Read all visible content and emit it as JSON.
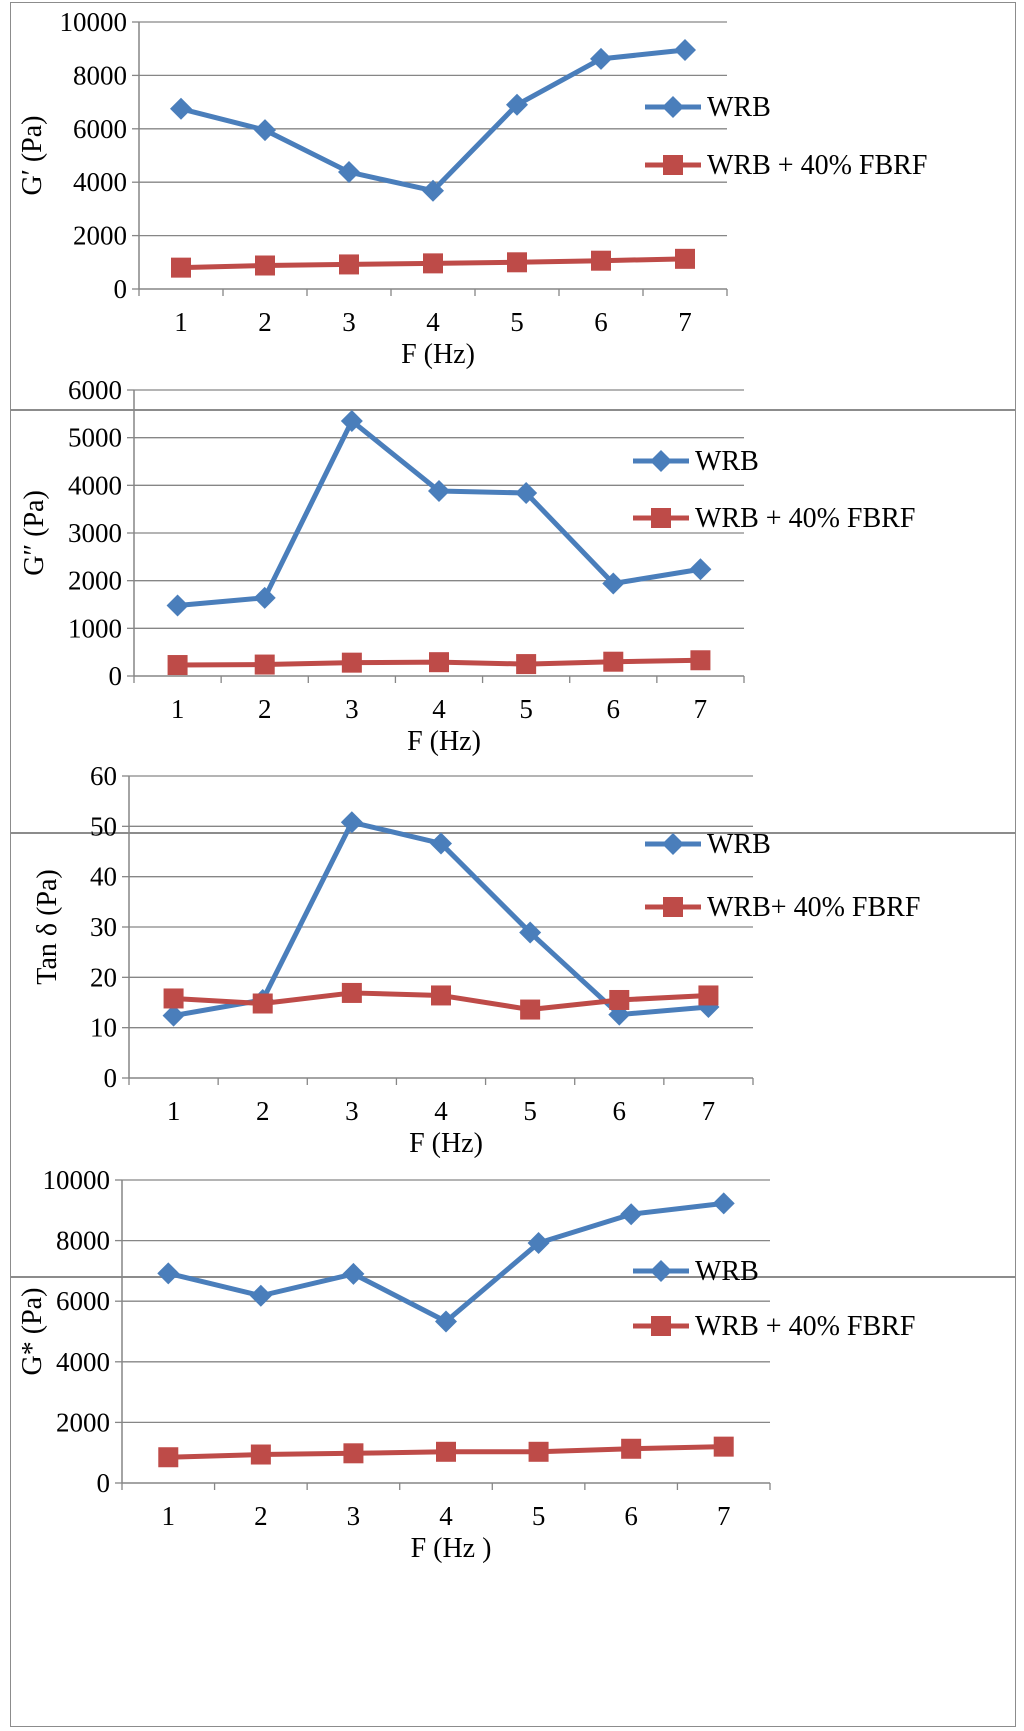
{
  "colors": {
    "series_a": "#4a7ebb",
    "series_b": "#be4b48",
    "grid": "#868686"
  },
  "chart_data": [
    {
      "type": "line",
      "title": "",
      "xlabel": "F (Hz)",
      "ylabel": "G′ (Pa)",
      "categories": [
        "1",
        "2",
        "3",
        "4",
        "5",
        "6",
        "7"
      ],
      "ylim": [
        0,
        10000
      ],
      "yticks": [
        "0",
        "2000",
        "4000",
        "6000",
        "8000",
        "10000"
      ],
      "legend_position": "right",
      "series": [
        {
          "name": "WRB",
          "marker": "diamond",
          "values": [
            6750,
            5950,
            4380,
            3680,
            6900,
            8620,
            8950
          ]
        },
        {
          "name": "WRB + 40% FBRF",
          "marker": "square",
          "values": [
            800,
            880,
            920,
            960,
            1000,
            1060,
            1130
          ]
        }
      ]
    },
    {
      "type": "line",
      "title": "",
      "xlabel": "F (Hz)",
      "ylabel": "G″ (Pa)",
      "categories": [
        "1",
        "2",
        "3",
        "4",
        "5",
        "6",
        "7"
      ],
      "ylim": [
        0,
        6000
      ],
      "yticks": [
        "0",
        "1000",
        "2000",
        "3000",
        "4000",
        "5000",
        "6000"
      ],
      "legend_position": "right",
      "series": [
        {
          "name": "WRB",
          "marker": "diamond",
          "values": [
            1480,
            1640,
            5350,
            3880,
            3840,
            1940,
            2240
          ]
        },
        {
          "name": "WRB + 40% FBRF",
          "marker": "square",
          "values": [
            230,
            240,
            280,
            290,
            250,
            300,
            330
          ]
        }
      ]
    },
    {
      "type": "line",
      "title": "",
      "xlabel": "F (Hz)",
      "ylabel": "Tan δ (Pa)",
      "categories": [
        "1",
        "2",
        "3",
        "4",
        "5",
        "6",
        "7"
      ],
      "ylim": [
        0,
        60
      ],
      "yticks": [
        "0",
        "10",
        "20",
        "30",
        "40",
        "50",
        "60"
      ],
      "legend_position": "right",
      "series": [
        {
          "name": "WRB",
          "marker": "diamond",
          "values": [
            12.4,
            15.5,
            50.8,
            46.6,
            28.9,
            12.6,
            14.1
          ]
        },
        {
          "name": "WRB+ 40% FBRF",
          "marker": "square",
          "values": [
            15.8,
            14.8,
            16.9,
            16.4,
            13.6,
            15.5,
            16.4
          ]
        }
      ]
    },
    {
      "type": "line",
      "title": "",
      "xlabel": "F (Hz )",
      "ylabel": "G* (Pa)",
      "categories": [
        "1",
        "2",
        "3",
        "4",
        "5",
        "6",
        "7"
      ],
      "ylim": [
        0,
        10000
      ],
      "yticks": [
        "0",
        "2000",
        "4000",
        "6000",
        "8000",
        "10000"
      ],
      "legend_position": "right",
      "series": [
        {
          "name": "WRB",
          "marker": "diamond",
          "values": [
            6920,
            6180,
            6900,
            5330,
            7920,
            8870,
            9230
          ]
        },
        {
          "name": "WRB + 40% FBRF",
          "marker": "square",
          "values": [
            850,
            940,
            980,
            1030,
            1030,
            1130,
            1200
          ]
        }
      ]
    }
  ]
}
